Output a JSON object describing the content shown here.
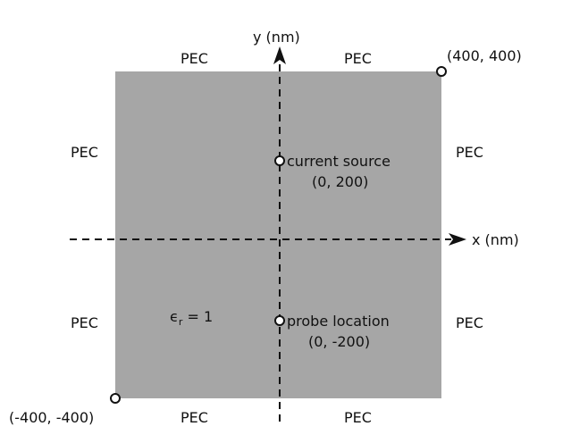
{
  "colors": {
    "region_fill": "#a6a6a6",
    "ink": "#111111",
    "background": "#ffffff"
  },
  "axes": {
    "x_label": "x (nm)",
    "y_label": "y (nm)"
  },
  "boundary": {
    "top_left": "PEC",
    "top_right": "PEC",
    "left_upper": "PEC",
    "left_lower": "PEC",
    "right_upper": "PEC",
    "right_lower": "PEC",
    "bottom_left": "PEC",
    "bottom_right": "PEC"
  },
  "corners": {
    "top_right": "(400, 400)",
    "bottom_left": "(-400, -400)"
  },
  "points": {
    "source_label": "current source",
    "source_coords": "(0, 200)",
    "probe_label": "probe location",
    "probe_coords": "(0, -200)"
  },
  "material": {
    "symbol": "ϵ",
    "subscript": "r",
    "rest": " = 1"
  }
}
